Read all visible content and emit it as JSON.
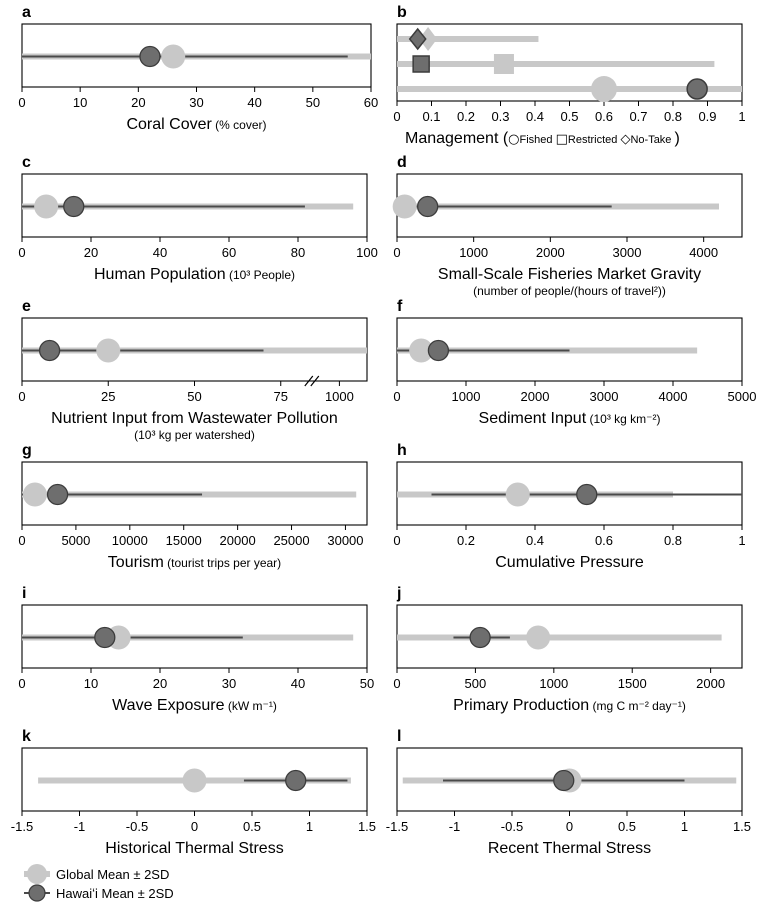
{
  "chart_data": [
    {
      "panel": "a",
      "type": "dot-whisker",
      "xlabel": "Coral Cover",
      "xlabel_unit": "(% cover)",
      "xlim": [
        0,
        60
      ],
      "ticks": [
        0,
        10,
        20,
        30,
        40,
        50,
        60
      ],
      "series": [
        {
          "name": "Global Mean ± 2SD",
          "mean": 26,
          "range": [
            0,
            60
          ]
        },
        {
          "name": "Hawaiʻi Mean ± 2SD",
          "mean": 22,
          "range": [
            0,
            56
          ]
        }
      ]
    },
    {
      "panel": "b",
      "type": "dot-whisker",
      "xlabel": "Management",
      "xlabel_unit": "",
      "legend_items": [
        "Fished",
        "Restricted",
        "No-Take"
      ],
      "xlim": [
        0,
        1
      ],
      "ticks": [
        0,
        0.1,
        0.2,
        0.3,
        0.4,
        0.5,
        0.6,
        0.7,
        0.8,
        0.9,
        1
      ],
      "rows": [
        {
          "category": "No-Take",
          "global_mean": 0.09,
          "global_range": [
            0,
            0.41
          ],
          "hawaii_mean": 0.06
        },
        {
          "category": "Restricted",
          "global_mean": 0.31,
          "global_range": [
            0,
            0.92
          ],
          "hawaii_mean": 0.07
        },
        {
          "category": "Fished",
          "global_mean": 0.6,
          "global_range": [
            0,
            1.0
          ],
          "hawaii_mean": 0.87
        }
      ]
    },
    {
      "panel": "c",
      "type": "dot-whisker",
      "xlabel": "Human Population",
      "xlabel_unit": "(10³ People)",
      "xlim": [
        0,
        100
      ],
      "ticks": [
        0,
        20,
        40,
        60,
        80,
        100
      ],
      "series": [
        {
          "name": "Global Mean ± 2SD",
          "mean": 7,
          "range": [
            0,
            96
          ]
        },
        {
          "name": "Hawaiʻi Mean ± 2SD",
          "mean": 15,
          "range": [
            0,
            82
          ]
        }
      ]
    },
    {
      "panel": "d",
      "type": "dot-whisker",
      "xlabel": "Small-Scale Fisheries Market Gravity",
      "xlabel_sub": "(number of people/(hours of travel²))",
      "xlim": [
        0,
        4500
      ],
      "ticks": [
        0,
        1000,
        2000,
        3000,
        4000
      ],
      "series": [
        {
          "name": "Global Mean ± 2SD",
          "mean": 100,
          "range": [
            0,
            4200
          ]
        },
        {
          "name": "Hawaiʻi Mean ± 2SD",
          "mean": 400,
          "range": [
            0,
            2800
          ]
        }
      ]
    },
    {
      "panel": "e",
      "type": "dot-whisker",
      "xlabel": "Nutrient Input from Wastewater Pollution",
      "xlabel_sub": "(10³ kg per watershed)",
      "xlim": [
        0,
        100
      ],
      "ticks": [
        0,
        25,
        50,
        75
      ],
      "broken_axis_tick": 1000,
      "series": [
        {
          "name": "Global Mean ± 2SD",
          "mean": 25,
          "range": [
            0,
            1010
          ]
        },
        {
          "name": "Hawaiʻi Mean ± 2SD",
          "mean": 8,
          "range": [
            0,
            70
          ]
        }
      ]
    },
    {
      "panel": "f",
      "type": "dot-whisker",
      "xlabel": "Sediment Input",
      "xlabel_unit": "(10³ kg km⁻²)",
      "xlim": [
        0,
        5000
      ],
      "ticks": [
        0,
        1000,
        2000,
        3000,
        4000,
        5000
      ],
      "series": [
        {
          "name": "Global Mean ± 2SD",
          "mean": 350,
          "range": [
            0,
            4350
          ]
        },
        {
          "name": "Hawaiʻi Mean ± 2SD",
          "mean": 600,
          "range": [
            0,
            2500
          ]
        }
      ]
    },
    {
      "panel": "g",
      "type": "dot-whisker",
      "xlabel": "Tourism",
      "xlabel_unit": "(tourist trips per year)",
      "xlim": [
        0,
        32000
      ],
      "ticks": [
        0,
        5000,
        10000,
        15000,
        20000,
        25000,
        30000
      ],
      "series": [
        {
          "name": "Global Mean ± 2SD",
          "mean": 1200,
          "range": [
            0,
            31000
          ]
        },
        {
          "name": "Hawaiʻi Mean ± 2SD",
          "mean": 3300,
          "range": [
            0,
            16700
          ]
        }
      ]
    },
    {
      "panel": "h",
      "type": "dot-whisker",
      "xlabel": "Cumulative Pressure",
      "xlabel_unit": "",
      "xlim": [
        0,
        1
      ],
      "ticks": [
        0,
        0.2,
        0.4,
        0.6,
        0.8,
        1
      ],
      "series": [
        {
          "name": "Global Mean ± 2SD",
          "mean": 0.35,
          "range": [
            0,
            0.8
          ]
        },
        {
          "name": "Hawaiʻi Mean ± 2SD",
          "mean": 0.55,
          "range": [
            0.1,
            1.0
          ]
        }
      ]
    },
    {
      "panel": "i",
      "type": "dot-whisker",
      "xlabel": "Wave Exposure",
      "xlabel_unit": "(kW m⁻¹)",
      "xlim": [
        0,
        50
      ],
      "ticks": [
        0,
        10,
        20,
        30,
        40,
        50
      ],
      "series": [
        {
          "name": "Global Mean ± 2SD",
          "mean": 14,
          "range": [
            0,
            48
          ]
        },
        {
          "name": "Hawaiʻi Mean ± 2SD",
          "mean": 12,
          "range": [
            0,
            32
          ]
        }
      ]
    },
    {
      "panel": "j",
      "type": "dot-whisker",
      "xlabel": "Primary Production",
      "xlabel_unit": "(mg C m⁻² day⁻¹)",
      "xlim": [
        0,
        2200
      ],
      "ticks": [
        0,
        500,
        1000,
        1500,
        2000
      ],
      "series": [
        {
          "name": "Global Mean ± 2SD",
          "mean": 900,
          "range": [
            0,
            2070
          ]
        },
        {
          "name": "Hawaiʻi Mean ± 2SD",
          "mean": 530,
          "range": [
            360,
            720
          ]
        }
      ]
    },
    {
      "panel": "k",
      "type": "dot-whisker",
      "xlabel": "Historical Thermal Stress",
      "xlabel_unit": "",
      "xlim": [
        -1.5,
        1.5
      ],
      "ticks": [
        -1.5,
        -1,
        -0.5,
        0,
        0.5,
        1,
        1.5
      ],
      "series": [
        {
          "name": "Global Mean ± 2SD",
          "mean": 0,
          "range": [
            -1.36,
            1.36
          ]
        },
        {
          "name": "Hawaiʻi Mean ± 2SD",
          "mean": 0.88,
          "range": [
            0.43,
            1.33
          ]
        }
      ]
    },
    {
      "panel": "l",
      "type": "dot-whisker",
      "xlabel": "Recent Thermal Stress",
      "xlabel_unit": "",
      "xlim": [
        -1.5,
        1.5
      ],
      "ticks": [
        -1.5,
        -1,
        -0.5,
        0,
        0.5,
        1,
        1.5
      ],
      "series": [
        {
          "name": "Global Mean ± 2SD",
          "mean": 0,
          "range": [
            -1.45,
            1.45
          ]
        },
        {
          "name": "Hawaiʻi Mean ± 2SD",
          "mean": -0.05,
          "range": [
            -1.1,
            1.0
          ]
        }
      ]
    }
  ],
  "legend": {
    "global_label": "Global Mean ± 2SD",
    "hawaii_label": "Hawaiʻi Mean ± 2SD"
  },
  "colors": {
    "global": "#c8c8c8",
    "hawaii": "#6e6e6e",
    "hawaii_line": "#4a4a4a",
    "marker_edge": "#3c3c3c"
  }
}
